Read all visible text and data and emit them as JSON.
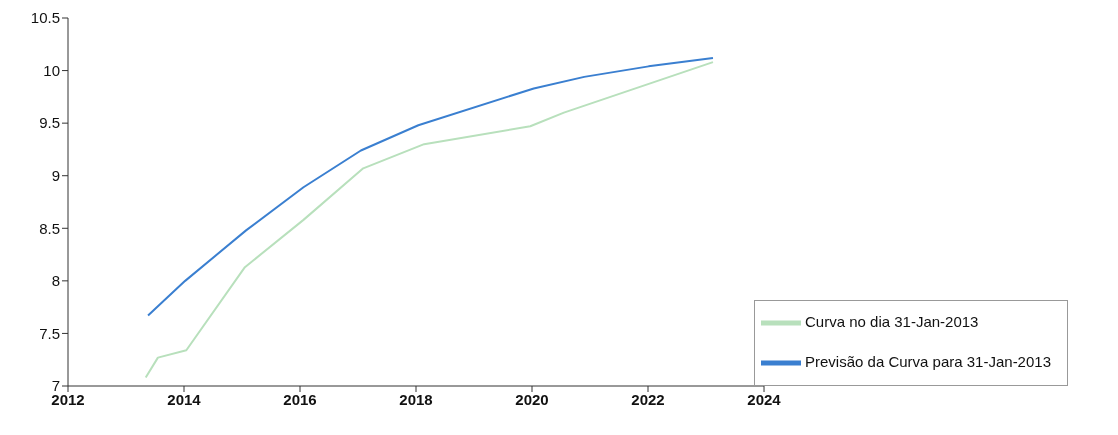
{
  "chart_data": {
    "type": "line",
    "xlim": [
      2012,
      2024
    ],
    "xticks": [
      2012,
      2014,
      2016,
      2018,
      2020,
      2022,
      2024
    ],
    "ylim": [
      7,
      10.5
    ],
    "yticks": [
      7,
      7.5,
      8,
      8.5,
      9,
      9.5,
      10,
      10.5
    ],
    "legend": "bottom right",
    "grid": false,
    "marker": "none",
    "line_style": "solid",
    "series": [
      {
        "name": "Previsão da Curva para 31-Jan-2013",
        "color": "#3a7fd0",
        "x": [
          2013.38,
          2013.61,
          2014.02,
          2015.07,
          2016.06,
          2017.05,
          2018.04,
          2020.03,
          2020.9,
          2022.01,
          2023.12
        ],
        "values": [
          7.67,
          7.79,
          8.0,
          8.48,
          8.89,
          9.24,
          9.48,
          9.83,
          9.94,
          10.04,
          10.12
        ]
      },
      {
        "name": "Curva no dia 31-Jan-2013",
        "color": "#b8e0bc",
        "x": [
          2013.34,
          2013.55,
          2014.04,
          2015.05,
          2016.06,
          2017.09,
          2018.14,
          2019.97,
          2020.55,
          2023.12
        ],
        "values": [
          7.08,
          7.27,
          7.34,
          8.13,
          8.58,
          9.07,
          9.3,
          9.47,
          9.6,
          10.08
        ]
      }
    ]
  }
}
